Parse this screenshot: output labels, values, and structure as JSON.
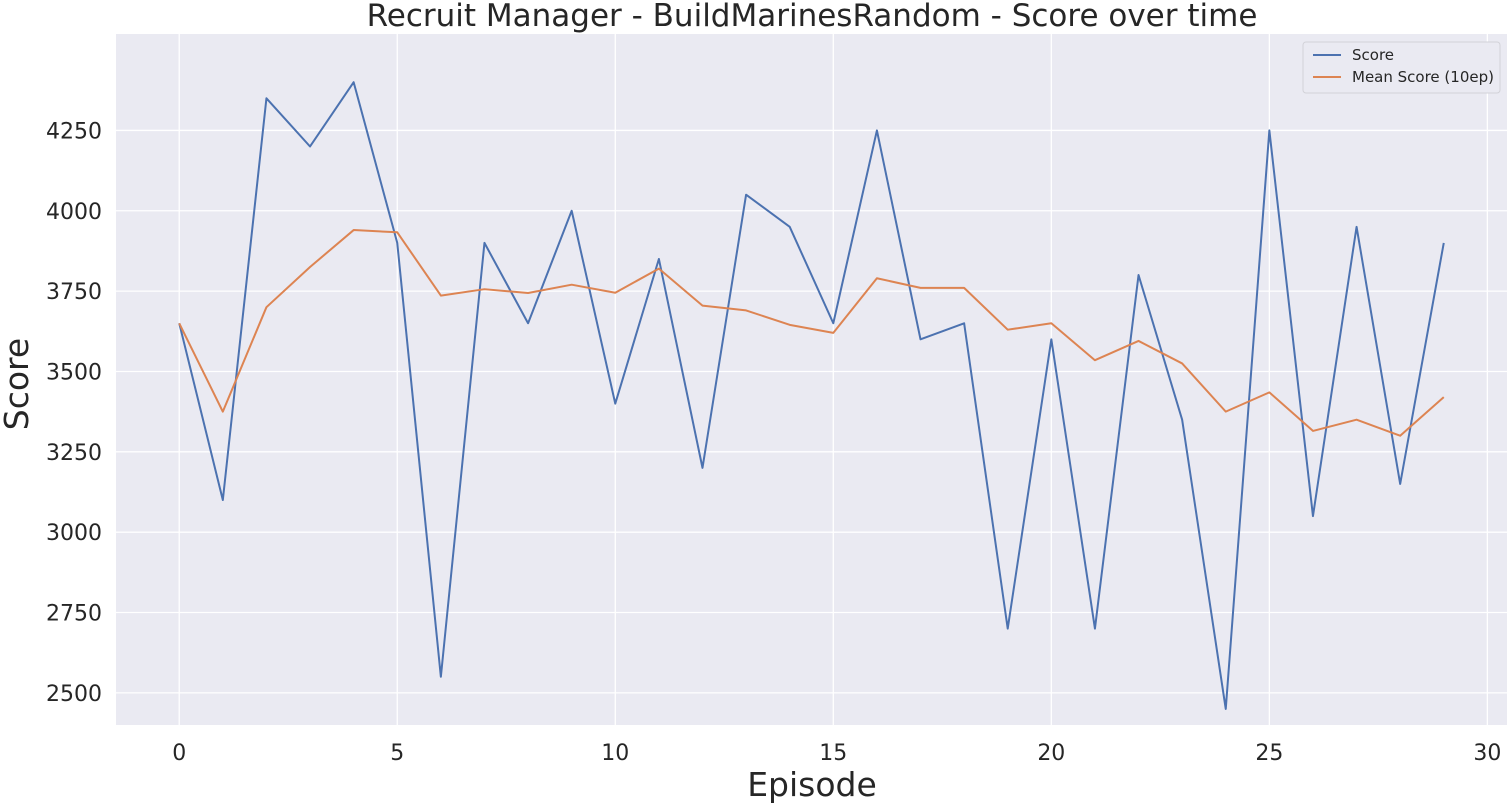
{
  "chart_data": {
    "type": "line",
    "title": "Recruit Manager - BuildMarinesRandom - Score over time",
    "xlabel": "Episode",
    "ylabel": "Score",
    "x": [
      0,
      1,
      2,
      3,
      4,
      5,
      6,
      7,
      8,
      9,
      10,
      11,
      12,
      13,
      14,
      15,
      16,
      17,
      18,
      19,
      20,
      21,
      22,
      23,
      24,
      25,
      26,
      27,
      28,
      29
    ],
    "xlim": [
      -1.45,
      30.45
    ],
    "ylim": [
      2400,
      4550
    ],
    "xticks": [
      0,
      5,
      10,
      15,
      20,
      25,
      30
    ],
    "yticks": [
      2500,
      2750,
      3000,
      3250,
      3500,
      3750,
      4000,
      4250
    ],
    "grid": true,
    "legend_position": "top-right",
    "series": [
      {
        "name": "Score",
        "color": "#4c72b0",
        "values": [
          3650,
          3100,
          4350,
          4200,
          4400,
          3900,
          2550,
          3900,
          3650,
          4000,
          3400,
          3850,
          3200,
          4050,
          3950,
          3650,
          4250,
          3600,
          3650,
          2700,
          3600,
          2700,
          3800,
          3350,
          2450,
          4250,
          3050,
          3950,
          3150,
          3900
        ]
      },
      {
        "name": "Mean Score (10ep)",
        "color": "#dd8452",
        "values": [
          3650,
          3375,
          3700,
          3825,
          3940,
          3933,
          3736,
          3756,
          3744,
          3770,
          3745,
          3820,
          3705,
          3690,
          3645,
          3620,
          3790,
          3760,
          3760,
          3630,
          3650,
          3535,
          3595,
          3525,
          3375,
          3435,
          3315,
          3350,
          3300,
          3420
        ]
      }
    ]
  }
}
